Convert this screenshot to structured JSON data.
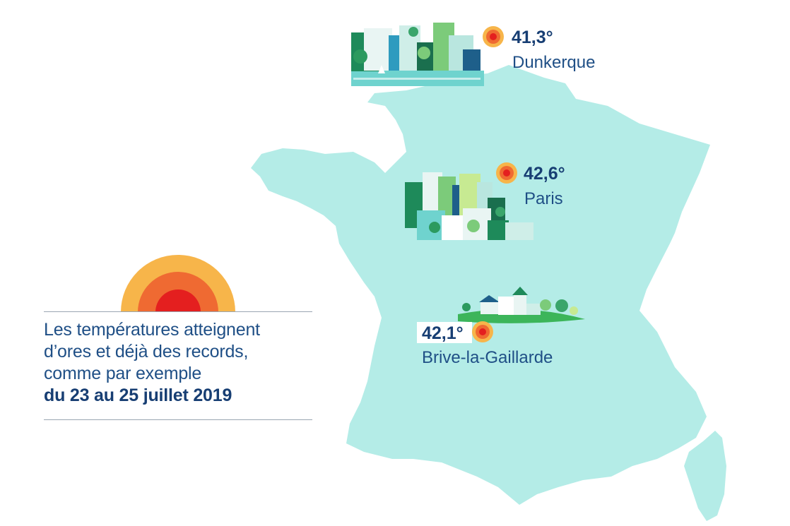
{
  "caption": {
    "line1": "Les températures atteignent",
    "line2": "d’ores et déjà des records,",
    "line3": "comme par exemple",
    "line4": "du 23 au 25 juillet 2019"
  },
  "map": {
    "land_color": "#b4ece7",
    "markers": [
      {
        "temperature": "41,3°",
        "city": "Dunkerque"
      },
      {
        "temperature": "42,6°",
        "city": "Paris"
      },
      {
        "temperature": "42,1°",
        "city": "Brive-la-Gaillarde"
      }
    ]
  },
  "colors": {
    "sun_outer": "#f7b54a",
    "sun_middle": "#ef6a32",
    "sun_inner": "#e41f1f",
    "text": "#1f4f86",
    "rule": "#9aa6b2"
  }
}
